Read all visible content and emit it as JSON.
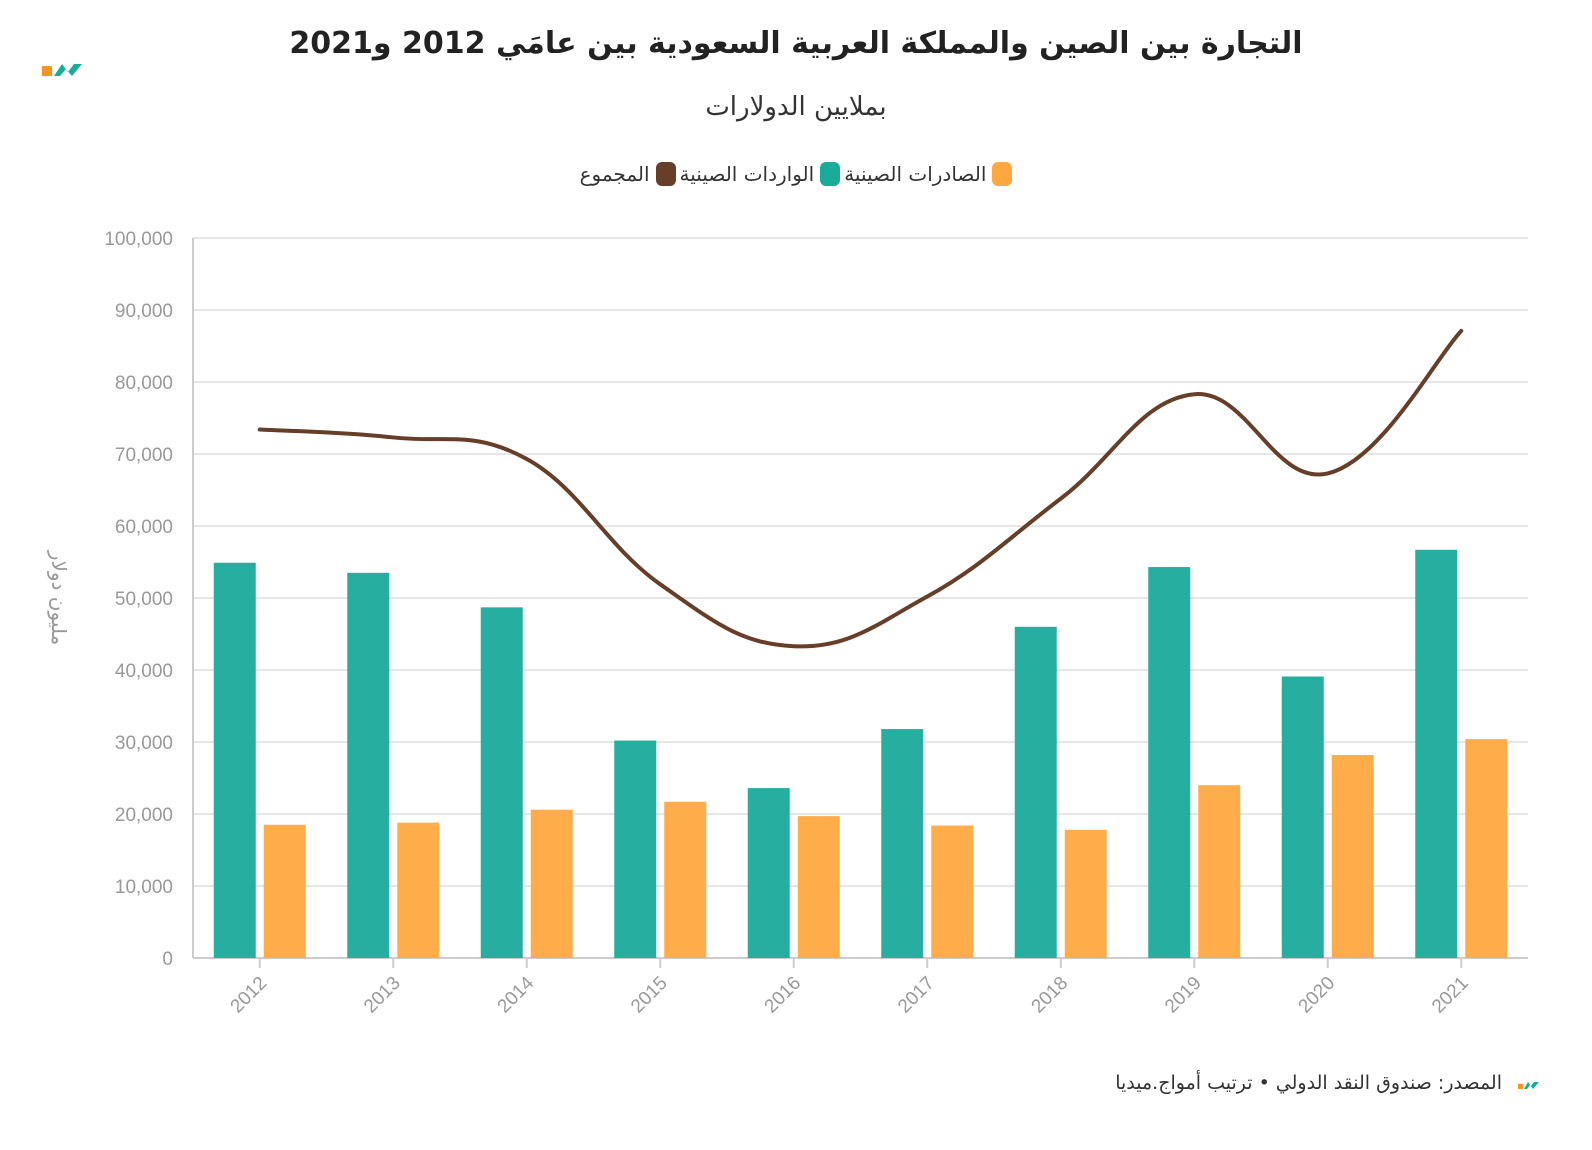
{
  "header": {
    "title": "التجارة بين الصين والمملكة العربية السعودية بين عامَي 2012 و2021",
    "subtitle": "بملايين الدولارات"
  },
  "legend": {
    "total": "المجموع",
    "imports": "الواردات الصينية",
    "exports": "الصادرات الصينية"
  },
  "footer": {
    "source": "المصدر: صندوق النقد الدولي • ترتيب أمواج.ميديا"
  },
  "colors": {
    "imports": "#1aab9b",
    "exports": "#ffa840",
    "total": "#673e27",
    "grid": "#e6e6e6",
    "axis": "#cccccc"
  },
  "chart_data": {
    "type": "bar",
    "categories": [
      "2012",
      "2013",
      "2014",
      "2015",
      "2016",
      "2017",
      "2018",
      "2019",
      "2020",
      "2021"
    ],
    "series": [
      {
        "name": "الواردات الصينية",
        "type": "bar",
        "values": [
          54900,
          53500,
          48700,
          30200,
          23600,
          31800,
          46000,
          54300,
          39100,
          56700
        ]
      },
      {
        "name": "الصادرات الصينية",
        "type": "bar",
        "values": [
          18500,
          18800,
          20600,
          21700,
          19700,
          18400,
          17800,
          24000,
          28200,
          30400
        ]
      },
      {
        "name": "المجموع",
        "type": "line",
        "values": [
          73400,
          72300,
          69300,
          51900,
          43300,
          50200,
          63800,
          78300,
          67300,
          87100
        ]
      }
    ],
    "xlabel": "",
    "ylabel": "مليون دولار",
    "ylim": [
      0,
      100000
    ],
    "yticks": [
      "0",
      "10,000",
      "20,000",
      "30,000",
      "40,000",
      "50,000",
      "60,000",
      "70,000",
      "80,000",
      "90,000",
      "100,000"
    ],
    "grid": true,
    "legend_position": "top-center"
  }
}
